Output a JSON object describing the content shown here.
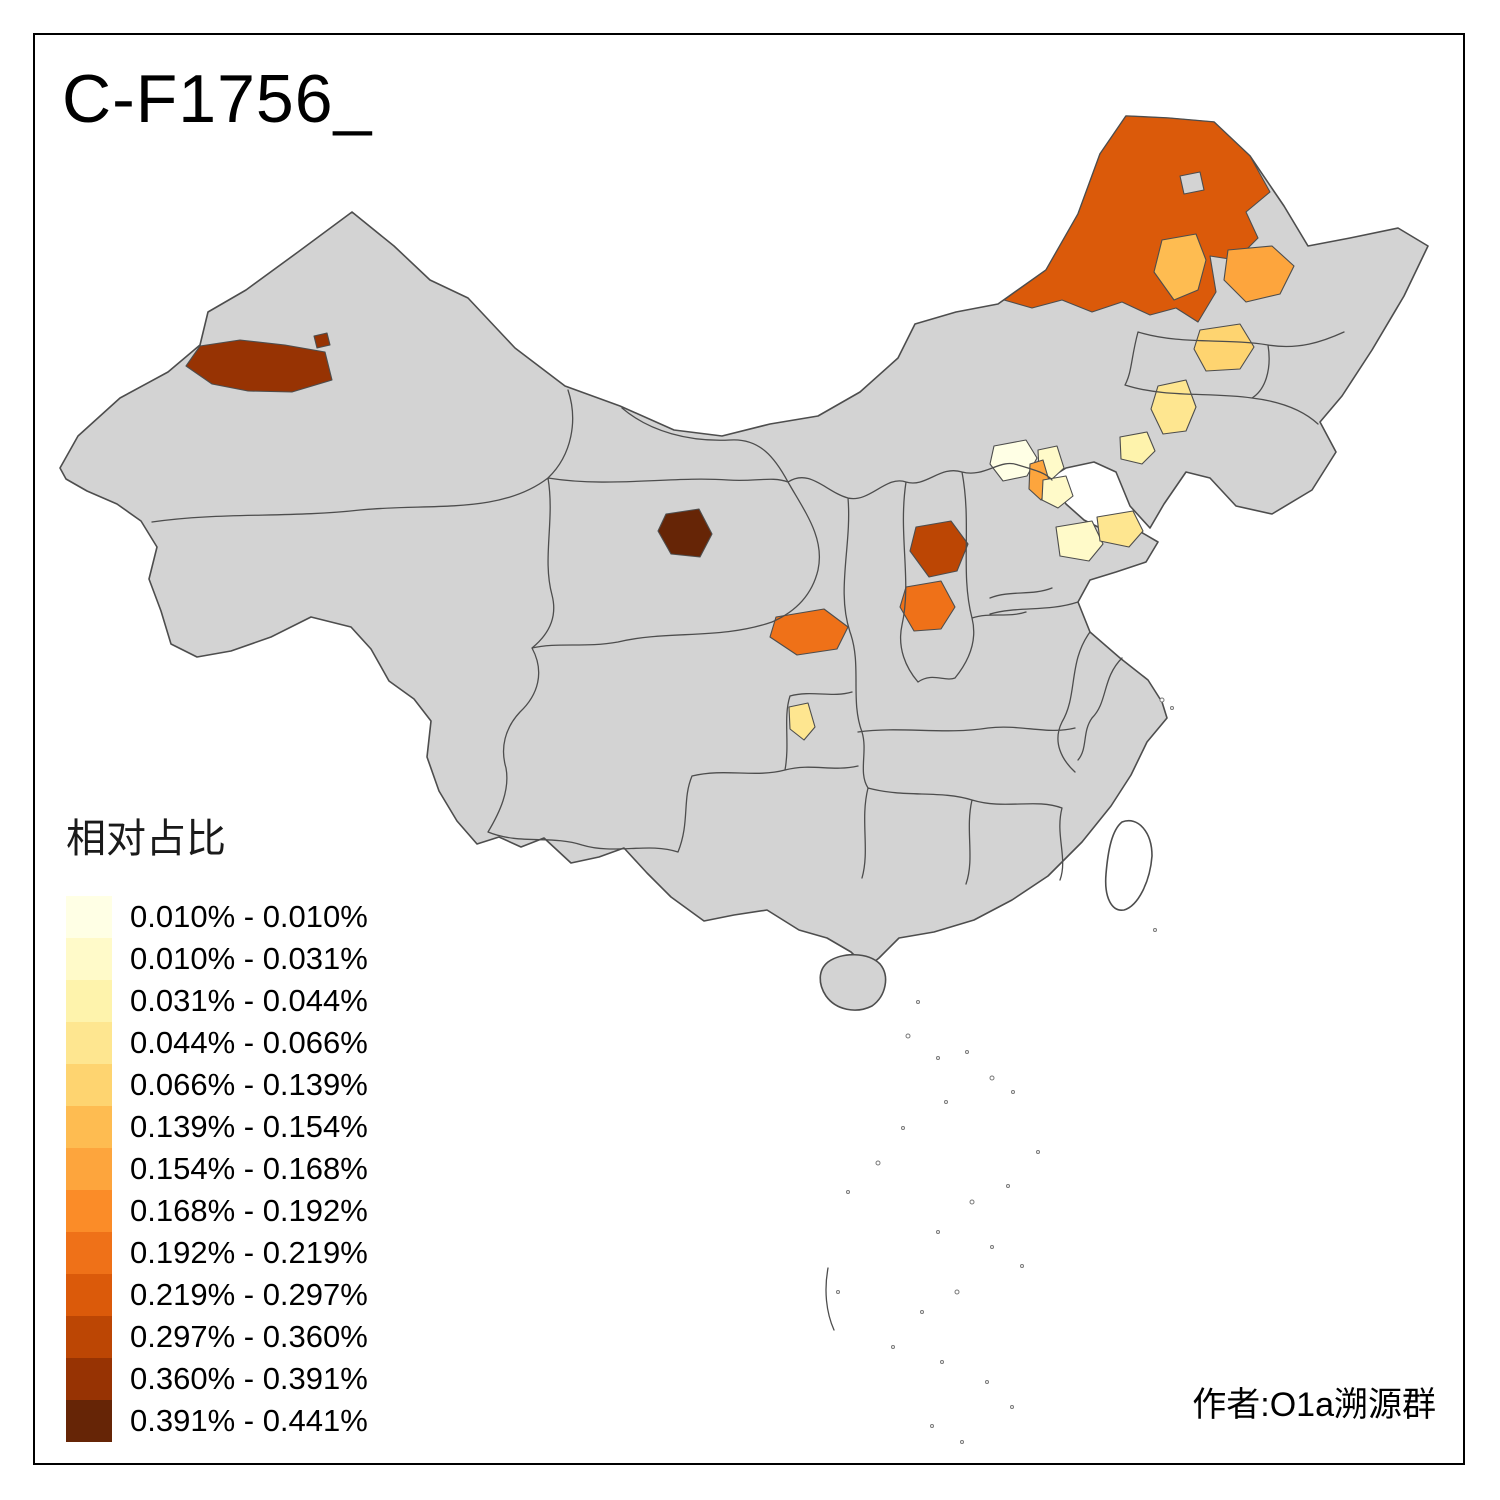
{
  "title": "C-F1756_",
  "attribution": "作者:O1a溯源群",
  "legend": {
    "title": "相对占比",
    "items": [
      {
        "range": "0.010% - 0.010%",
        "color": "#FFFFE5"
      },
      {
        "range": "0.010% - 0.031%",
        "color": "#FFFAC9"
      },
      {
        "range": "0.031% - 0.044%",
        "color": "#FEF3AC"
      },
      {
        "range": "0.044% - 0.066%",
        "color": "#FEE690"
      },
      {
        "range": "0.066% - 0.139%",
        "color": "#FED470"
      },
      {
        "range": "0.139% - 0.154%",
        "color": "#FEBC51"
      },
      {
        "range": "0.154% - 0.168%",
        "color": "#FDA53D"
      },
      {
        "range": "0.168% - 0.192%",
        "color": "#FB8C28"
      },
      {
        "range": "0.192% - 0.219%",
        "color": "#EF7118"
      },
      {
        "range": "0.219% - 0.297%",
        "color": "#DB5A0A"
      },
      {
        "range": "0.297% - 0.360%",
        "color": "#BC4604"
      },
      {
        "range": "0.360% - 0.391%",
        "color": "#973303"
      },
      {
        "range": "0.391% - 0.441%",
        "color": "#662506"
      }
    ]
  },
  "map": {
    "base_fill": "#D3D3D3",
    "no_data_fill": "#FFFFFF",
    "boundary_color": "#4D4D4D",
    "regions": [
      {
        "area": "northeast-inner-mongolia",
        "bin": 9
      },
      {
        "area": "west-xinjiang",
        "bin": 11
      },
      {
        "area": "qinghai-east",
        "bin": 12
      },
      {
        "area": "shanxi-north",
        "bin": 10
      },
      {
        "area": "shanxi-south",
        "bin": 8
      },
      {
        "area": "gansu-south",
        "bin": 8
      },
      {
        "area": "heilongjiang-west",
        "bin": 5
      },
      {
        "area": "heilongjiang-east",
        "bin": 6
      },
      {
        "area": "heilongjiang-south",
        "bin": 4
      },
      {
        "area": "jilin",
        "bin": 3
      },
      {
        "area": "liaoning",
        "bin": 2
      },
      {
        "area": "beijing",
        "bin": 0
      },
      {
        "area": "tianjin",
        "bin": 6
      },
      {
        "area": "hebei-east",
        "bin": 1
      },
      {
        "area": "shandong-west",
        "bin": 1
      },
      {
        "area": "shandong-east",
        "bin": 3
      },
      {
        "area": "chongqing",
        "bin": 3
      }
    ]
  }
}
